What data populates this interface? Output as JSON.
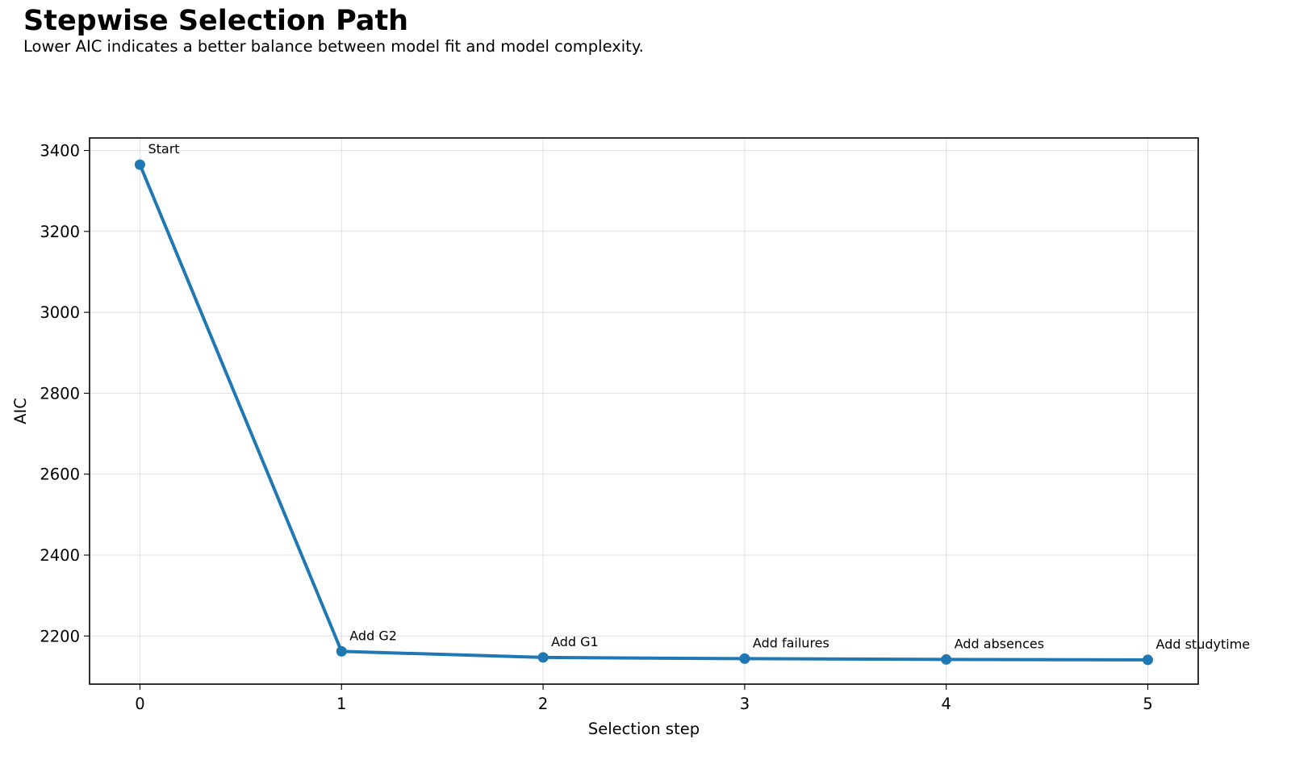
{
  "title": "Stepwise Selection Path",
  "subtitle": "Lower AIC indicates a better balance between model fit and model complexity.",
  "chart_data": {
    "type": "line",
    "x": [
      0,
      1,
      2,
      3,
      4,
      5
    ],
    "series": [
      {
        "values": [
          3365,
          2162,
          2147,
          2144,
          2142,
          2141
        ],
        "color": "#1f77b4",
        "marker": "circle"
      }
    ],
    "annotations": [
      "Start",
      "Add G2",
      "Add G1",
      "Add failures",
      "Add absences",
      "Add studytime"
    ],
    "xlabel": "Selection step",
    "ylabel": "AIC",
    "xticks": [
      0,
      1,
      2,
      3,
      4,
      5
    ],
    "yticks": [
      2200,
      2400,
      2600,
      2800,
      3000,
      3200,
      3400
    ],
    "xlim": [
      -0.25,
      5.25
    ],
    "ylim": [
      2081,
      3431
    ],
    "grid": true,
    "legend": false
  }
}
